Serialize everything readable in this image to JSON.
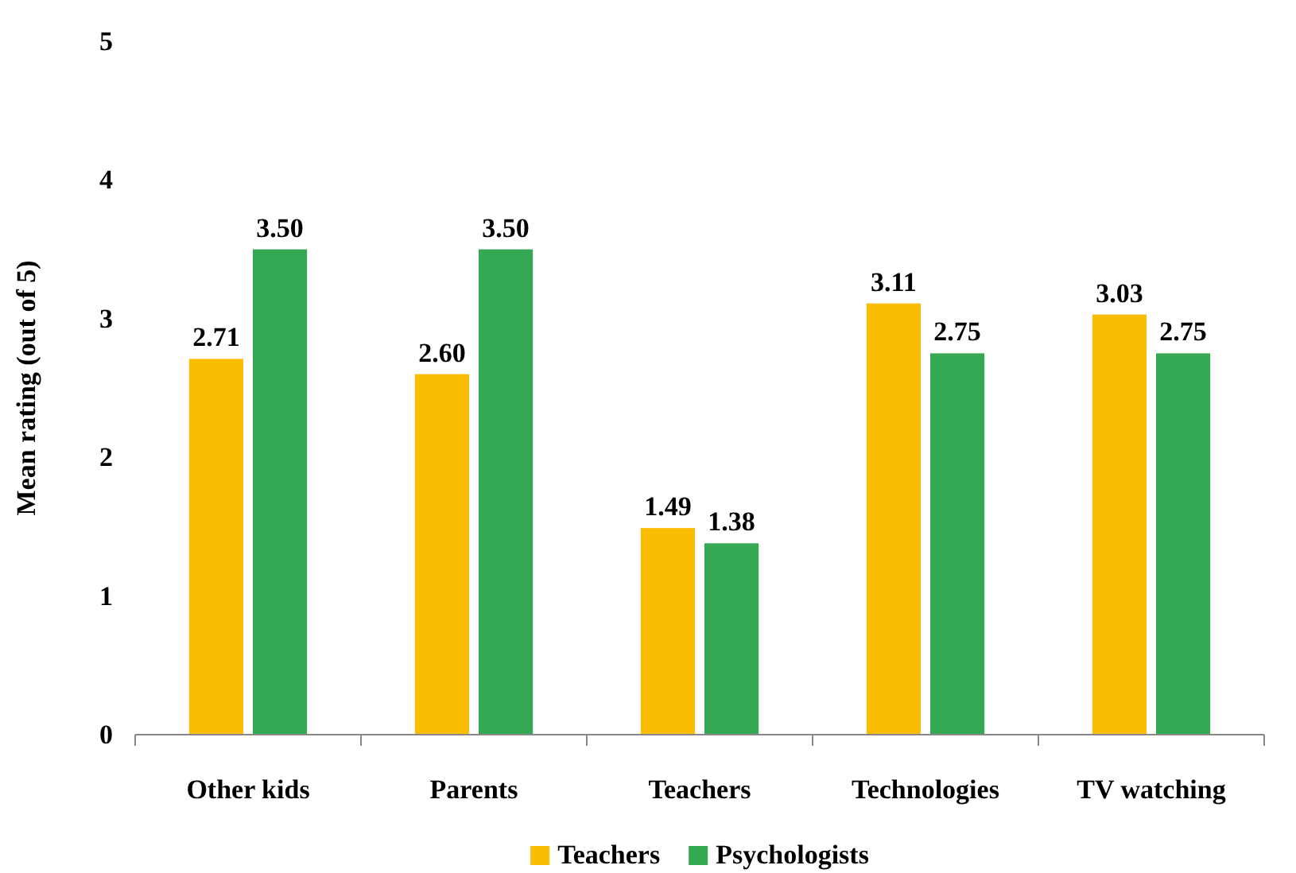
{
  "chart_data": {
    "type": "bar",
    "ylabel": "Mean rating (out of 5)",
    "categories": [
      "Other kids",
      "Parents",
      "Teachers",
      "Technologies",
      "TV watching"
    ],
    "series": [
      {
        "name": "Teachers",
        "color": "#fbbc04",
        "values": [
          2.71,
          2.6,
          1.49,
          3.11,
          3.03
        ],
        "value_labels": [
          "2.71",
          "2.60",
          "1.49",
          "3.11",
          "3.03"
        ]
      },
      {
        "name": "Psychologists",
        "color": "#34a853",
        "values": [
          3.5,
          3.5,
          1.38,
          2.75,
          2.75
        ],
        "value_labels": [
          "3.50",
          "3.50",
          "1.38",
          "2.75",
          "2.75"
        ]
      }
    ],
    "ylim": [
      0,
      5
    ],
    "yticks": [
      0,
      1,
      2,
      3,
      4,
      5
    ],
    "legend": "bottom",
    "grid": false
  }
}
